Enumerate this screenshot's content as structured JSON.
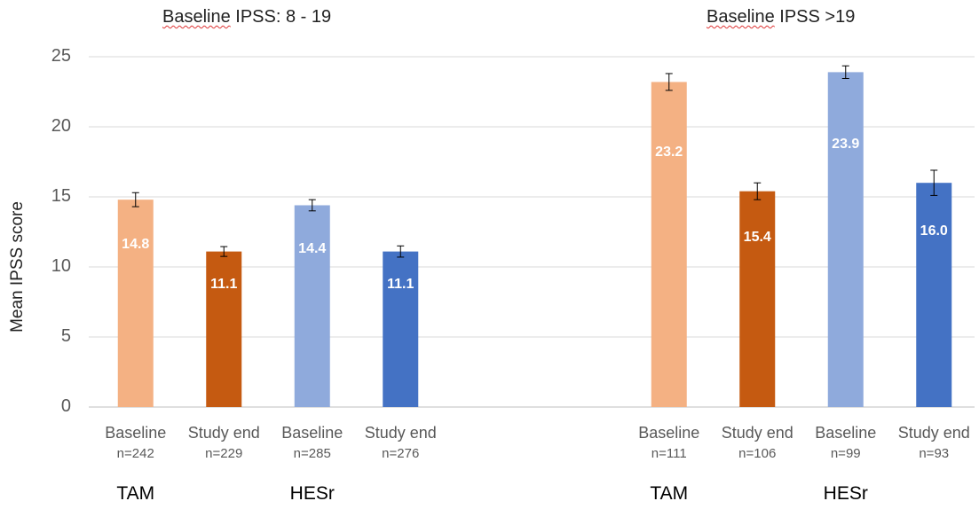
{
  "chart_data": {
    "type": "bar",
    "ylabel": "Mean IPSS score",
    "ylim": [
      0,
      25
    ],
    "yticks": [
      0,
      5,
      10,
      15,
      20,
      25
    ],
    "grid": true,
    "groups": [
      {
        "title_prefix": "Baseline",
        "title_rest": " IPSS: 8 - 19",
        "arms": [
          "TAM",
          "HESr"
        ],
        "bars": [
          {
            "category": "Baseline",
            "n": "n=242",
            "arm": "TAM",
            "value": 14.8,
            "label": "14.8",
            "err": 0.5,
            "color": "#f4b183"
          },
          {
            "category": "Study end",
            "n": "n=229",
            "arm": "TAM",
            "value": 11.1,
            "label": "11.1",
            "err": 0.35,
            "color": "#c55a11"
          },
          {
            "category": "Baseline",
            "n": "n=285",
            "arm": "HESr",
            "value": 14.4,
            "label": "14.4",
            "err": 0.4,
            "color": "#8faadc"
          },
          {
            "category": "Study end",
            "n": "n=276",
            "arm": "HESr",
            "value": 11.1,
            "label": "11.1",
            "err": 0.4,
            "color": "#4472c4"
          }
        ]
      },
      {
        "title_prefix": "Baseline",
        "title_rest": " IPSS >19",
        "arms": [
          "TAM",
          "HESr"
        ],
        "bars": [
          {
            "category": "Baseline",
            "n": "n=111",
            "arm": "TAM",
            "value": 23.2,
            "label": "23.2",
            "err": 0.6,
            "color": "#f4b183"
          },
          {
            "category": "Study end",
            "n": "n=106",
            "arm": "TAM",
            "value": 15.4,
            "label": "15.4",
            "err": 0.6,
            "color": "#c55a11"
          },
          {
            "category": "Baseline",
            "n": "n=99",
            "arm": "HESr",
            "value": 23.9,
            "label": "23.9",
            "err": 0.45,
            "color": "#8faadc"
          },
          {
            "category": "Study end",
            "n": "n=93",
            "arm": "HESr",
            "value": 16.0,
            "label": "16.0",
            "err": 0.9,
            "color": "#4472c4"
          }
        ]
      }
    ]
  }
}
